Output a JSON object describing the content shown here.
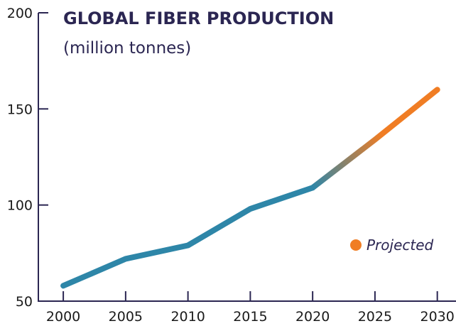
{
  "chart_data": {
    "type": "line",
    "title": "GLOBAL FIBER PRODUCTION",
    "subtitle": "(million tonnes)",
    "xlabel": "",
    "ylabel": "",
    "x": [
      2000,
      2005,
      2010,
      2015,
      2020,
      2025,
      2030
    ],
    "xlim": [
      1998,
      2031.5
    ],
    "ylim": [
      50,
      200
    ],
    "yticks": [
      50,
      100,
      150,
      200
    ],
    "series": [
      {
        "values": [
          58,
          72,
          79,
          98,
          109
        ],
        "x": [
          2000,
          2005,
          2010,
          2015,
          2020
        ],
        "color": "#2e86a8"
      },
      {
        "name": "Projected",
        "values": [
          109,
          134,
          160
        ],
        "x": [
          2020,
          2025,
          2030
        ],
        "color": "#f07d24"
      }
    ],
    "legend": {
      "label": "Projected",
      "color": "#f07d24",
      "placement": "right-middle"
    },
    "grid": false
  },
  "colors": {
    "axis": "#2b2652",
    "title": "#2b2652",
    "historical": "#2e86a8",
    "projected": "#f07d24"
  }
}
